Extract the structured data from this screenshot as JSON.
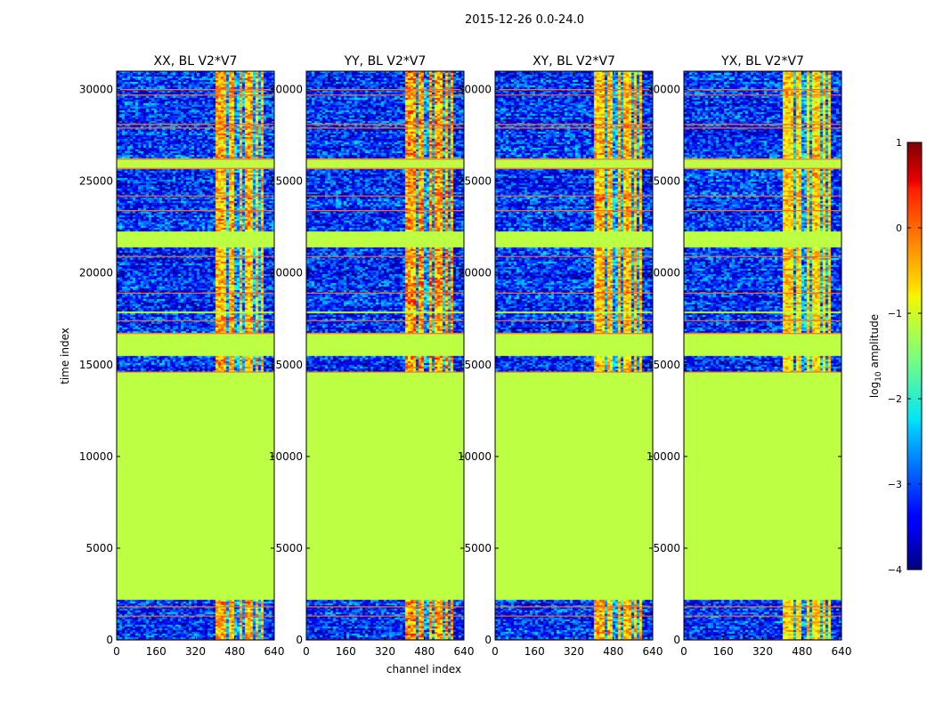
{
  "chart_data": {
    "type": "heatmap",
    "suptitle": "2015-12-26 0.0-24.0",
    "xlabel": "channel index",
    "ylabel": "time index",
    "xlim": [
      0,
      640
    ],
    "ylim": [
      0,
      31000
    ],
    "xticks": [
      "0",
      "160",
      "320",
      "480",
      "640"
    ],
    "yticks": [
      "0",
      "5000",
      "10000",
      "15000",
      "20000",
      "25000",
      "30000"
    ],
    "panels": [
      {
        "title": "XX, BL V2*V7",
        "band_scale": 1.0
      },
      {
        "title": "YY, BL V2*V7",
        "band_scale": 1.15
      },
      {
        "title": "XY, BL V2*V7",
        "band_scale": 0.95
      },
      {
        "title": "YX, BL V2*V7",
        "band_scale": 0.8
      }
    ],
    "flagged_fill_value": -1.2,
    "background_noise_range": [
      -3.9,
      -2.4
    ],
    "bright_channel_band": [
      405,
      600
    ],
    "bright_channel_columns": [
      [
        405,
        445
      ],
      [
        455,
        480
      ],
      [
        495,
        505
      ],
      [
        525,
        555
      ],
      [
        565,
        580
      ],
      [
        590,
        600
      ]
    ],
    "flagged_time_ranges": [
      [
        2200,
        14600
      ],
      [
        15500,
        16700
      ],
      [
        17800,
        17900
      ],
      [
        21400,
        22300
      ],
      [
        25700,
        26200
      ]
    ],
    "noise_time_ranges": [
      [
        0,
        2200
      ],
      [
        14600,
        15500
      ],
      [
        16700,
        17800
      ],
      [
        17900,
        21400
      ],
      [
        22300,
        25700
      ],
      [
        26200,
        31000
      ]
    ],
    "rfi_time_rows": [
      0,
      1300,
      1800,
      14600,
      16700,
      17400,
      18900,
      20900,
      23400,
      24200,
      25700,
      26200,
      27900,
      28100,
      29700,
      30000
    ],
    "colorbar": {
      "label": "log10 amplitude",
      "label_main": "log",
      "label_sub": "10",
      "label_rest": " amplitude",
      "range": [
        -4,
        1
      ],
      "ticks": [
        "1",
        "0",
        "−1",
        "−2",
        "−3",
        "−4"
      ],
      "colormap": "jet"
    }
  }
}
